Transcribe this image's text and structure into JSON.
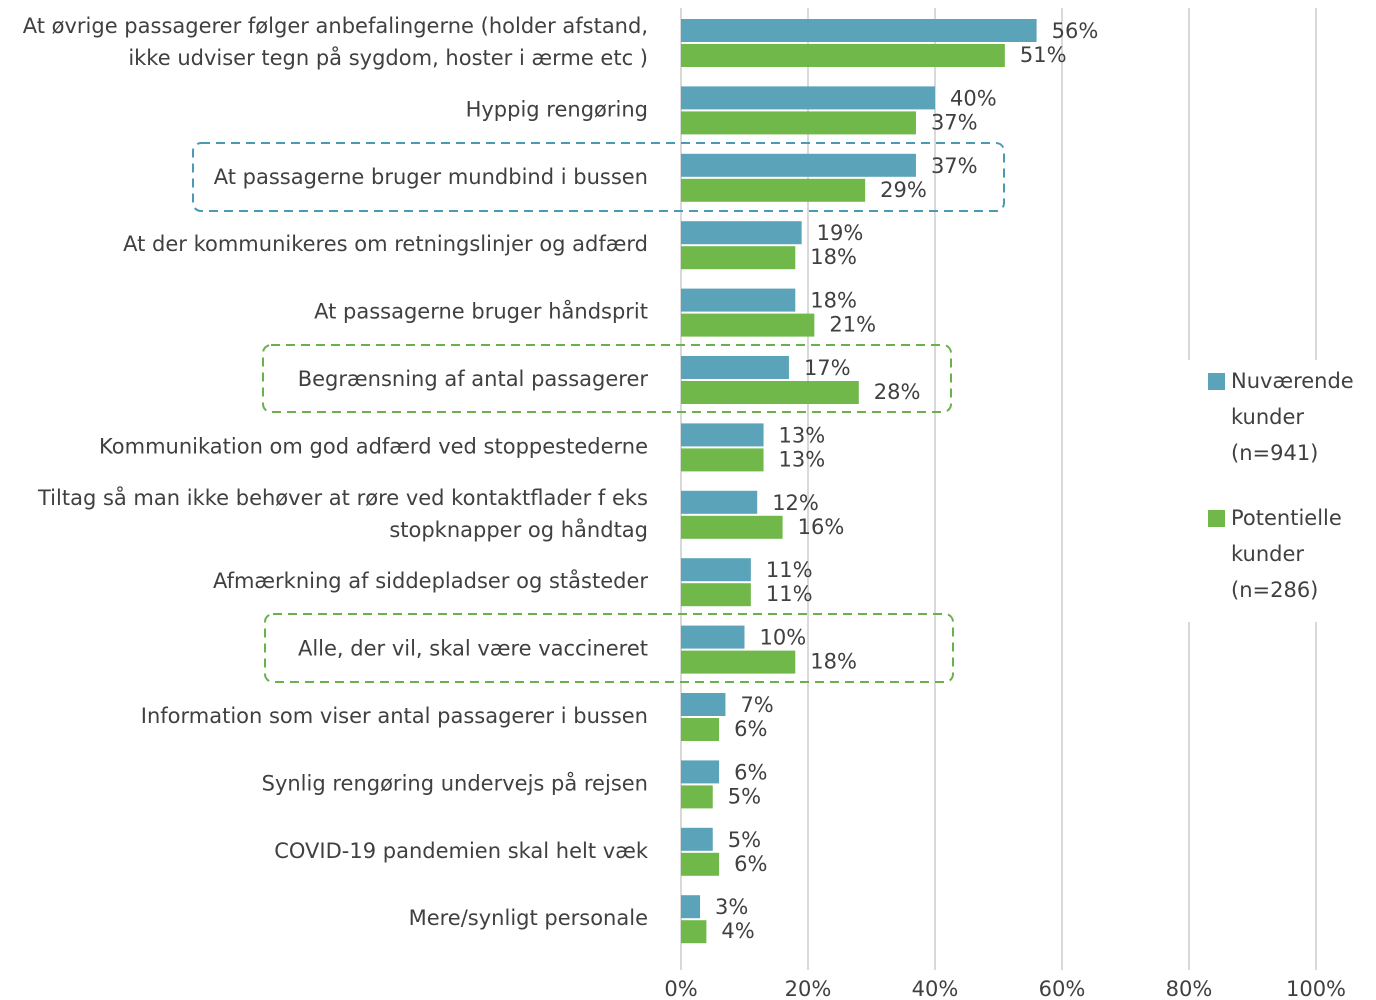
{
  "chart_data": {
    "type": "bar",
    "orientation": "horizontal",
    "categories": [
      "At øvrige passagerer følger anbefalingerne (holder afstand,\nikke udviser tegn på sygdom, hoster i ærme etc )",
      "Hyppig rengøring",
      "At passagerne bruger mundbind i bussen",
      "At der kommunikeres om retningslinjer og adfærd",
      "At passagerne bruger håndsprit",
      "Begrænsning af antal passagerer",
      "Kommunikation om god adfærd ved stoppestederne",
      "Tiltag så man ikke behøver at røre ved kontaktflader f eks\nstopknapper og håndtag",
      "Afmærkning af siddepladser og ståsteder",
      "Alle, der vil, skal være vaccineret",
      "Information som viser antal passagerer i bussen",
      "Synlig rengøring undervejs på rejsen",
      "COVID-19 pandemien skal helt væk",
      "Mere/synligt personale"
    ],
    "series": [
      {
        "name": "Nuværende kunder (n=941)",
        "color": "#5ba3b8",
        "values": [
          56,
          40,
          37,
          19,
          18,
          17,
          13,
          12,
          11,
          10,
          7,
          6,
          5,
          3
        ],
        "value_labels": [
          "56%",
          "40%",
          "37%",
          "19%",
          "18%",
          "17%",
          "13%",
          "12%",
          "11%",
          "10%",
          "7%",
          "6%",
          "5%",
          "3%"
        ]
      },
      {
        "name": "Potentielle kunder (n=286)",
        "color": "#70b84a",
        "values": [
          51,
          37,
          29,
          18,
          21,
          28,
          13,
          16,
          11,
          18,
          6,
          5,
          6,
          4
        ],
        "value_labels": [
          "51%",
          "37%",
          "29%",
          "18%",
          "21%",
          "28%",
          "13%",
          "16%",
          "11%",
          "18%",
          "6%",
          "5%",
          "6%",
          "4%"
        ]
      }
    ],
    "xlim": [
      0,
      100
    ],
    "xticks": [
      {
        "value": 0,
        "label": "0%"
      },
      {
        "value": 20,
        "label": "20%"
      },
      {
        "value": 40,
        "label": "40%"
      },
      {
        "value": 60,
        "label": "60%"
      },
      {
        "value": 80,
        "label": "80%"
      },
      {
        "value": 100,
        "label": "100%"
      }
    ],
    "grid": true,
    "legend": "right"
  }
}
